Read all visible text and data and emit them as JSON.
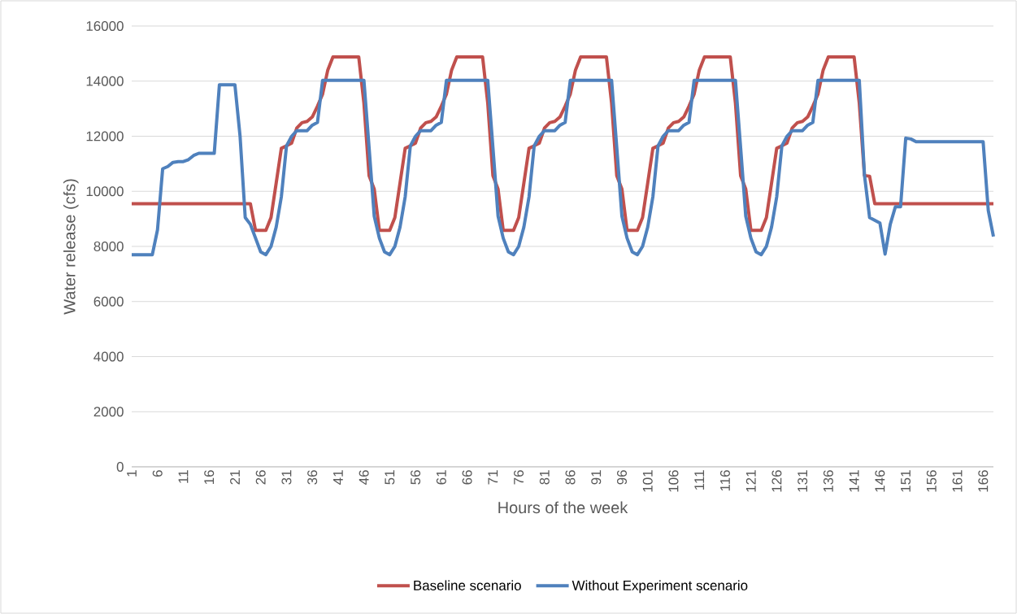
{
  "chart_data": {
    "type": "line",
    "xlabel": "Hours of the week",
    "ylabel": "Water release (cfs)",
    "x": [
      1,
      2,
      3,
      4,
      5,
      6,
      7,
      8,
      9,
      10,
      11,
      12,
      13,
      14,
      15,
      16,
      17,
      18,
      19,
      20,
      21,
      22,
      23,
      24,
      25,
      26,
      27,
      28,
      29,
      30,
      31,
      32,
      33,
      34,
      35,
      36,
      37,
      38,
      39,
      40,
      41,
      42,
      43,
      44,
      45,
      46,
      47,
      48,
      49,
      50,
      51,
      52,
      53,
      54,
      55,
      56,
      57,
      58,
      59,
      60,
      61,
      62,
      63,
      64,
      65,
      66,
      67,
      68,
      69,
      70,
      71,
      72,
      73,
      74,
      75,
      76,
      77,
      78,
      79,
      80,
      81,
      82,
      83,
      84,
      85,
      86,
      87,
      88,
      89,
      90,
      91,
      92,
      93,
      94,
      95,
      96,
      97,
      98,
      99,
      100,
      101,
      102,
      103,
      104,
      105,
      106,
      107,
      108,
      109,
      110,
      111,
      112,
      113,
      114,
      115,
      116,
      117,
      118,
      119,
      120,
      121,
      122,
      123,
      124,
      125,
      126,
      127,
      128,
      129,
      130,
      131,
      132,
      133,
      134,
      135,
      136,
      137,
      138,
      139,
      140,
      141,
      142,
      143,
      144,
      145,
      146,
      147,
      148,
      149,
      150,
      151,
      152,
      153,
      154,
      155,
      156,
      157,
      158,
      159,
      160,
      161,
      162,
      163,
      164,
      165,
      166,
      167,
      168
    ],
    "xlim": [
      1,
      168
    ],
    "xticks": [
      1,
      6,
      11,
      16,
      21,
      26,
      31,
      36,
      41,
      46,
      51,
      56,
      61,
      66,
      71,
      76,
      81,
      86,
      91,
      96,
      101,
      106,
      111,
      116,
      121,
      126,
      131,
      136,
      141,
      146,
      151,
      156,
      161,
      166
    ],
    "ylim": [
      0,
      16000
    ],
    "yticks": [
      0,
      2000,
      4000,
      6000,
      8000,
      10000,
      12000,
      14000,
      16000
    ],
    "grid": "y",
    "legend": "bottom",
    "series": [
      {
        "name": "Baseline scenario",
        "color": "#c0504d",
        "values": [
          9550,
          9550,
          9550,
          9550,
          9550,
          9550,
          9550,
          9550,
          9550,
          9550,
          9550,
          9550,
          9550,
          9550,
          9550,
          9550,
          9550,
          9550,
          9550,
          9550,
          9550,
          9550,
          9550,
          9550,
          8580,
          8580,
          8580,
          9050,
          10300,
          11560,
          11650,
          11750,
          12300,
          12490,
          12540,
          12700,
          13090,
          13530,
          14400,
          14880,
          14880,
          14880,
          14880,
          14880,
          14880,
          13200,
          10570,
          10080,
          8580,
          8580,
          8580,
          9050,
          10300,
          11560,
          11650,
          11750,
          12300,
          12490,
          12540,
          12700,
          13090,
          13530,
          14400,
          14880,
          14880,
          14880,
          14880,
          14880,
          14880,
          13200,
          10570,
          10080,
          8580,
          8580,
          8580,
          9050,
          10300,
          11560,
          11650,
          11750,
          12300,
          12490,
          12540,
          12700,
          13090,
          13530,
          14400,
          14880,
          14880,
          14880,
          14880,
          14880,
          14880,
          13200,
          10570,
          10080,
          8580,
          8580,
          8580,
          9050,
          10300,
          11560,
          11650,
          11750,
          12300,
          12490,
          12540,
          12700,
          13090,
          13530,
          14400,
          14880,
          14880,
          14880,
          14880,
          14880,
          14880,
          13200,
          10570,
          10080,
          8580,
          8580,
          8580,
          9050,
          10300,
          11560,
          11650,
          11750,
          12300,
          12490,
          12540,
          12700,
          13090,
          13530,
          14400,
          14880,
          14880,
          14880,
          14880,
          14880,
          14880,
          13200,
          10570,
          10550,
          9550,
          9550,
          9550,
          9550,
          9550,
          9550,
          9550,
          9550,
          9550,
          9550,
          9550,
          9550,
          9550,
          9550,
          9550,
          9550,
          9550,
          9550,
          9550,
          9550,
          9550,
          9550,
          9550,
          9550
        ]
      },
      {
        "name": "Without Experiment scenario",
        "color": "#4f81bd",
        "values": [
          7700,
          7700,
          7700,
          7700,
          7700,
          8600,
          10820,
          10900,
          11050,
          11080,
          11080,
          11150,
          11300,
          11380,
          11380,
          11380,
          11380,
          13870,
          13870,
          13870,
          13870,
          12000,
          9050,
          8800,
          8300,
          7800,
          7700,
          8000,
          8700,
          9800,
          11650,
          12000,
          12200,
          12200,
          12200,
          12400,
          12500,
          14030,
          14030,
          14030,
          14030,
          14030,
          14030,
          14030,
          14030,
          14030,
          11600,
          9100,
          8300,
          7800,
          7700,
          8000,
          8700,
          9800,
          11650,
          12000,
          12200,
          12200,
          12200,
          12400,
          12500,
          14030,
          14030,
          14030,
          14030,
          14030,
          14030,
          14030,
          14030,
          14030,
          11600,
          9100,
          8300,
          7800,
          7700,
          8000,
          8700,
          9800,
          11650,
          12000,
          12200,
          12200,
          12200,
          12400,
          12500,
          14030,
          14030,
          14030,
          14030,
          14030,
          14030,
          14030,
          14030,
          14030,
          11600,
          9100,
          8300,
          7800,
          7700,
          8000,
          8700,
          9800,
          11650,
          12000,
          12200,
          12200,
          12200,
          12400,
          12500,
          14030,
          14030,
          14030,
          14030,
          14030,
          14030,
          14030,
          14030,
          14030,
          11600,
          9100,
          8300,
          7800,
          7700,
          8000,
          8700,
          9800,
          11650,
          12000,
          12200,
          12200,
          12200,
          12400,
          12500,
          14030,
          14030,
          14030,
          14030,
          14030,
          14030,
          14030,
          14030,
          14030,
          10600,
          9050,
          8950,
          8850,
          7720,
          8800,
          9440,
          9440,
          11930,
          11900,
          11800,
          11800,
          11800,
          11800,
          11800,
          11800,
          11800,
          11800,
          11800,
          11800,
          11800,
          11800,
          11800,
          11800,
          9300,
          8360
        ]
      }
    ]
  }
}
